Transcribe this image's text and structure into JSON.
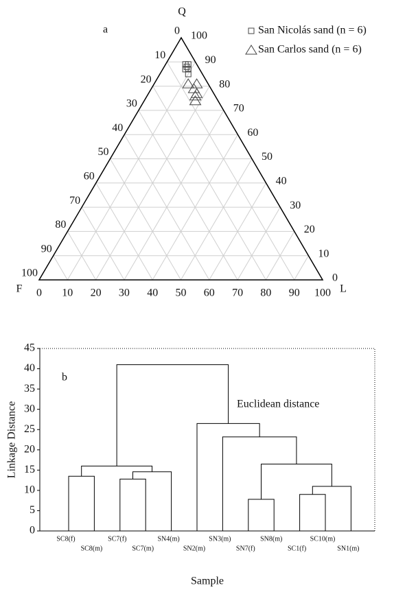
{
  "chart_data": [
    {
      "type": "ternary",
      "panel_label": "a",
      "top_label": "Q",
      "left_label": "F",
      "right_label": "L",
      "qticks": [
        0,
        10,
        20,
        30,
        40,
        50,
        60,
        70,
        80,
        90,
        100
      ],
      "fticks": [
        0,
        10,
        20,
        30,
        40,
        50,
        60,
        70,
        80,
        90,
        100
      ],
      "lticks": [
        0,
        10,
        20,
        30,
        40,
        50,
        60,
        70,
        80,
        90,
        100
      ],
      "grid": true,
      "series": [
        {
          "name": "San Nicolás sand (n = 6)",
          "marker": "square",
          "color": "#444444",
          "q": [
            89,
            89,
            88,
            87,
            87,
            85
          ],
          "f": [
            4,
            3,
            4,
            5,
            4,
            5
          ],
          "l": [
            7,
            8,
            8,
            8,
            9,
            10
          ]
        },
        {
          "name": "San Carlos sand (n = 6)",
          "marker": "triangle",
          "color": "#444444",
          "q": [
            81,
            81,
            79,
            77,
            76,
            74
          ],
          "f": [
            7,
            4,
            6,
            6,
            7,
            8
          ],
          "l": [
            12,
            15,
            15,
            17,
            17,
            18
          ]
        }
      ]
    },
    {
      "type": "dendrogram",
      "panel_label": "b",
      "annotation": "Euclidean distance",
      "ylabel": "Linkage Distance",
      "xlabel": "Sample",
      "leaves": [
        "SC8(f)",
        "SC8(m)",
        "SC7(f)",
        "SC7(m)",
        "SN4(m)",
        "SN2(m)",
        "SN3(m)",
        "SN7(f)",
        "SN8(m)",
        "SC1(f)",
        "SC10(m)",
        "SN1(m)"
      ],
      "merges": [
        [
          0,
          1
        ],
        [
          2,
          3
        ],
        [
          13,
          4
        ],
        [
          12,
          14
        ],
        [
          7,
          8
        ],
        [
          9,
          10
        ],
        [
          17,
          11
        ],
        [
          16,
          18
        ],
        [
          6,
          19
        ],
        [
          5,
          20
        ],
        [
          15,
          21
        ]
      ],
      "heights": [
        13.5,
        12.8,
        14.6,
        16,
        7.8,
        9,
        11,
        16.5,
        23.2,
        26.5,
        41
      ],
      "color": "#000000",
      "ylim": [
        0,
        45
      ],
      "yticks": [
        0,
        5,
        10,
        15,
        20,
        25,
        30,
        35,
        40,
        45
      ]
    }
  ]
}
